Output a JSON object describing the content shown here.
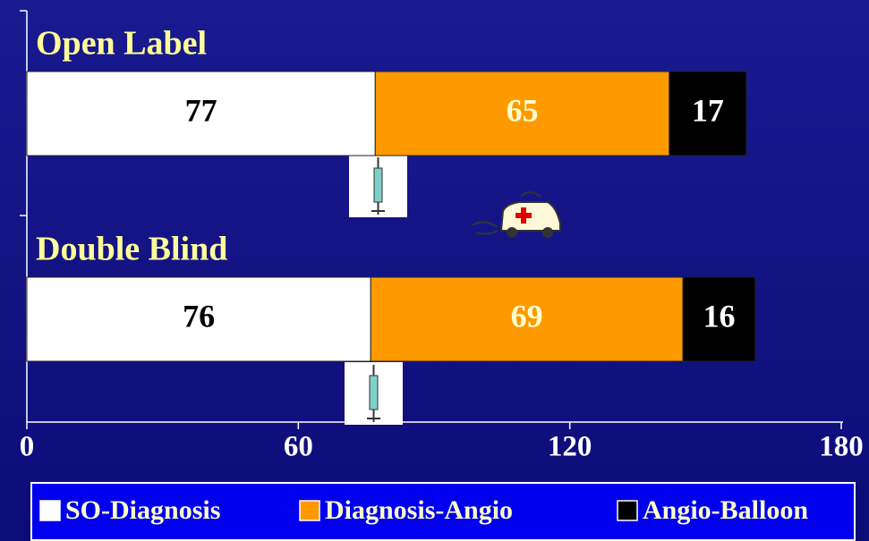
{
  "chart_data": {
    "type": "stacked-bar-horizontal",
    "categories": [
      "Open Label",
      "Double Blind"
    ],
    "series": [
      {
        "name": "SO-Diagnosis",
        "color": "#ffffff",
        "values": [
          77,
          76
        ]
      },
      {
        "name": "Diagnosis-Angio",
        "color": "#ff9900",
        "values": [
          65,
          69
        ]
      },
      {
        "name": "Angio-Balloon",
        "color": "#000000",
        "values": [
          17,
          16
        ]
      }
    ],
    "xlim": [
      0,
      180
    ],
    "xticks": [
      0,
      60,
      120,
      180
    ],
    "grid": false,
    "legend": "bottom"
  }
}
